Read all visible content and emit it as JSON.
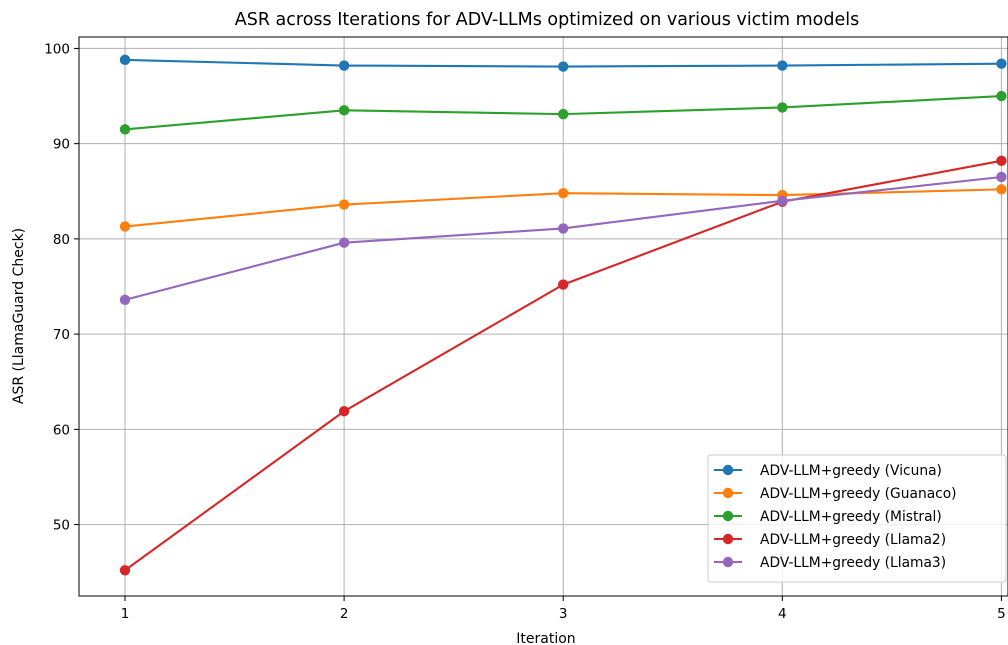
{
  "chart_data": {
    "type": "line",
    "title": "ASR across Iterations for ADV-LLMs optimized on various victim models",
    "xlabel": "Iteration",
    "ylabel": "ASR (LlamaGuard Check)",
    "x": [
      1,
      2,
      3,
      4,
      5
    ],
    "xlim": [
      0.79,
      5.03
    ],
    "ylim": [
      42.5,
      101.2
    ],
    "xticks": [
      "1",
      "2",
      "3",
      "4",
      "5"
    ],
    "yticks": [
      50,
      60,
      70,
      80,
      90,
      100
    ],
    "grid": true,
    "legend_position": "lower-right",
    "series": [
      {
        "name": "ADV-LLM+greedy (Vicuna)",
        "color": "#1f77b4",
        "values": [
          98.8,
          98.2,
          98.1,
          98.2,
          98.4
        ]
      },
      {
        "name": "ADV-LLM+greedy (Guanaco)",
        "color": "#ff7f0e",
        "values": [
          81.3,
          83.6,
          84.8,
          84.6,
          85.2
        ]
      },
      {
        "name": "ADV-LLM+greedy (Mistral)",
        "color": "#2ca02c",
        "values": [
          91.5,
          93.5,
          93.1,
          93.8,
          95.0
        ]
      },
      {
        "name": "ADV-LLM+greedy (Llama2)",
        "color": "#d62728",
        "values": [
          45.2,
          61.9,
          75.2,
          83.9,
          88.2
        ]
      },
      {
        "name": "ADV-LLM+greedy (Llama3)",
        "color": "#9467bd",
        "values": [
          73.6,
          79.6,
          81.1,
          84.0,
          86.5
        ]
      }
    ]
  }
}
